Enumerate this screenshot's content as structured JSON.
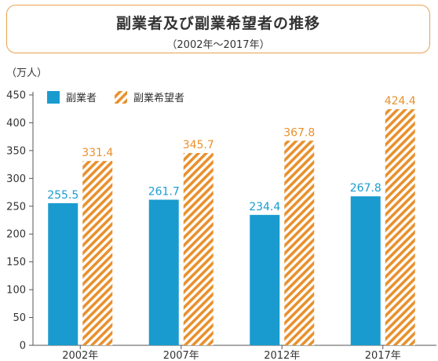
{
  "header": {
    "title": "副業者及び副業希望者の推移",
    "subtitle": "（2002年～2017年）"
  },
  "colors": {
    "series_a": "#1a9bcf",
    "series_b": "#e8912e",
    "border": "#e8a14f"
  },
  "chart_data": {
    "type": "bar",
    "title": "副業者及び副業希望者の推移",
    "subtitle": "（2002年～2017年）",
    "ylabel": "（万人）",
    "xlabel": "",
    "categories": [
      "2002年",
      "2007年",
      "2012年",
      "2017年"
    ],
    "series": [
      {
        "name": "副業者",
        "values": [
          255.5,
          261.7,
          234.4,
          267.8
        ],
        "style": "solid"
      },
      {
        "name": "副業希望者",
        "values": [
          331.4,
          345.7,
          367.8,
          424.4
        ],
        "style": "hatched"
      }
    ],
    "ylim": [
      0,
      450
    ],
    "yticks": [
      0,
      50,
      100,
      150,
      200,
      250,
      300,
      350,
      400,
      450
    ],
    "legend_position": "top-left",
    "grid": false
  }
}
